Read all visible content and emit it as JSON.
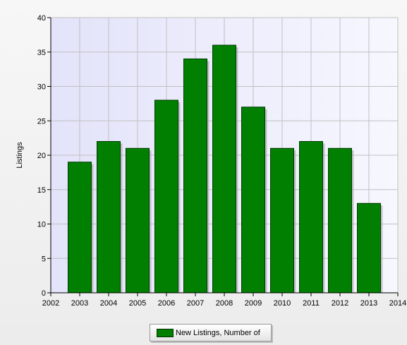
{
  "chart_data": {
    "type": "bar",
    "title": "",
    "xlabel": "",
    "ylabel": "Listings",
    "categories": [
      "2003",
      "2004",
      "2005",
      "2006",
      "2007",
      "2008",
      "2009",
      "2010",
      "2011",
      "2012",
      "2013"
    ],
    "x_ticks": [
      "2002",
      "2003",
      "2004",
      "2005",
      "2006",
      "2007",
      "2008",
      "2009",
      "2010",
      "2011",
      "2012",
      "2013",
      "2014"
    ],
    "series": [
      {
        "name": "New Listings, Number of",
        "values": [
          19,
          22,
          21,
          28,
          34,
          36,
          27,
          21,
          22,
          21,
          13
        ]
      }
    ],
    "ylim": [
      0,
      40
    ],
    "y_ticks": [
      0,
      5,
      10,
      15,
      20,
      25,
      30,
      35,
      40
    ],
    "grid": true,
    "legend_position": "bottom-center",
    "colors": {
      "bar": "#007f00",
      "bar_edge": "#003a00",
      "plot_bg": "#e6e6fa",
      "grid": "#c0c0c0"
    }
  }
}
